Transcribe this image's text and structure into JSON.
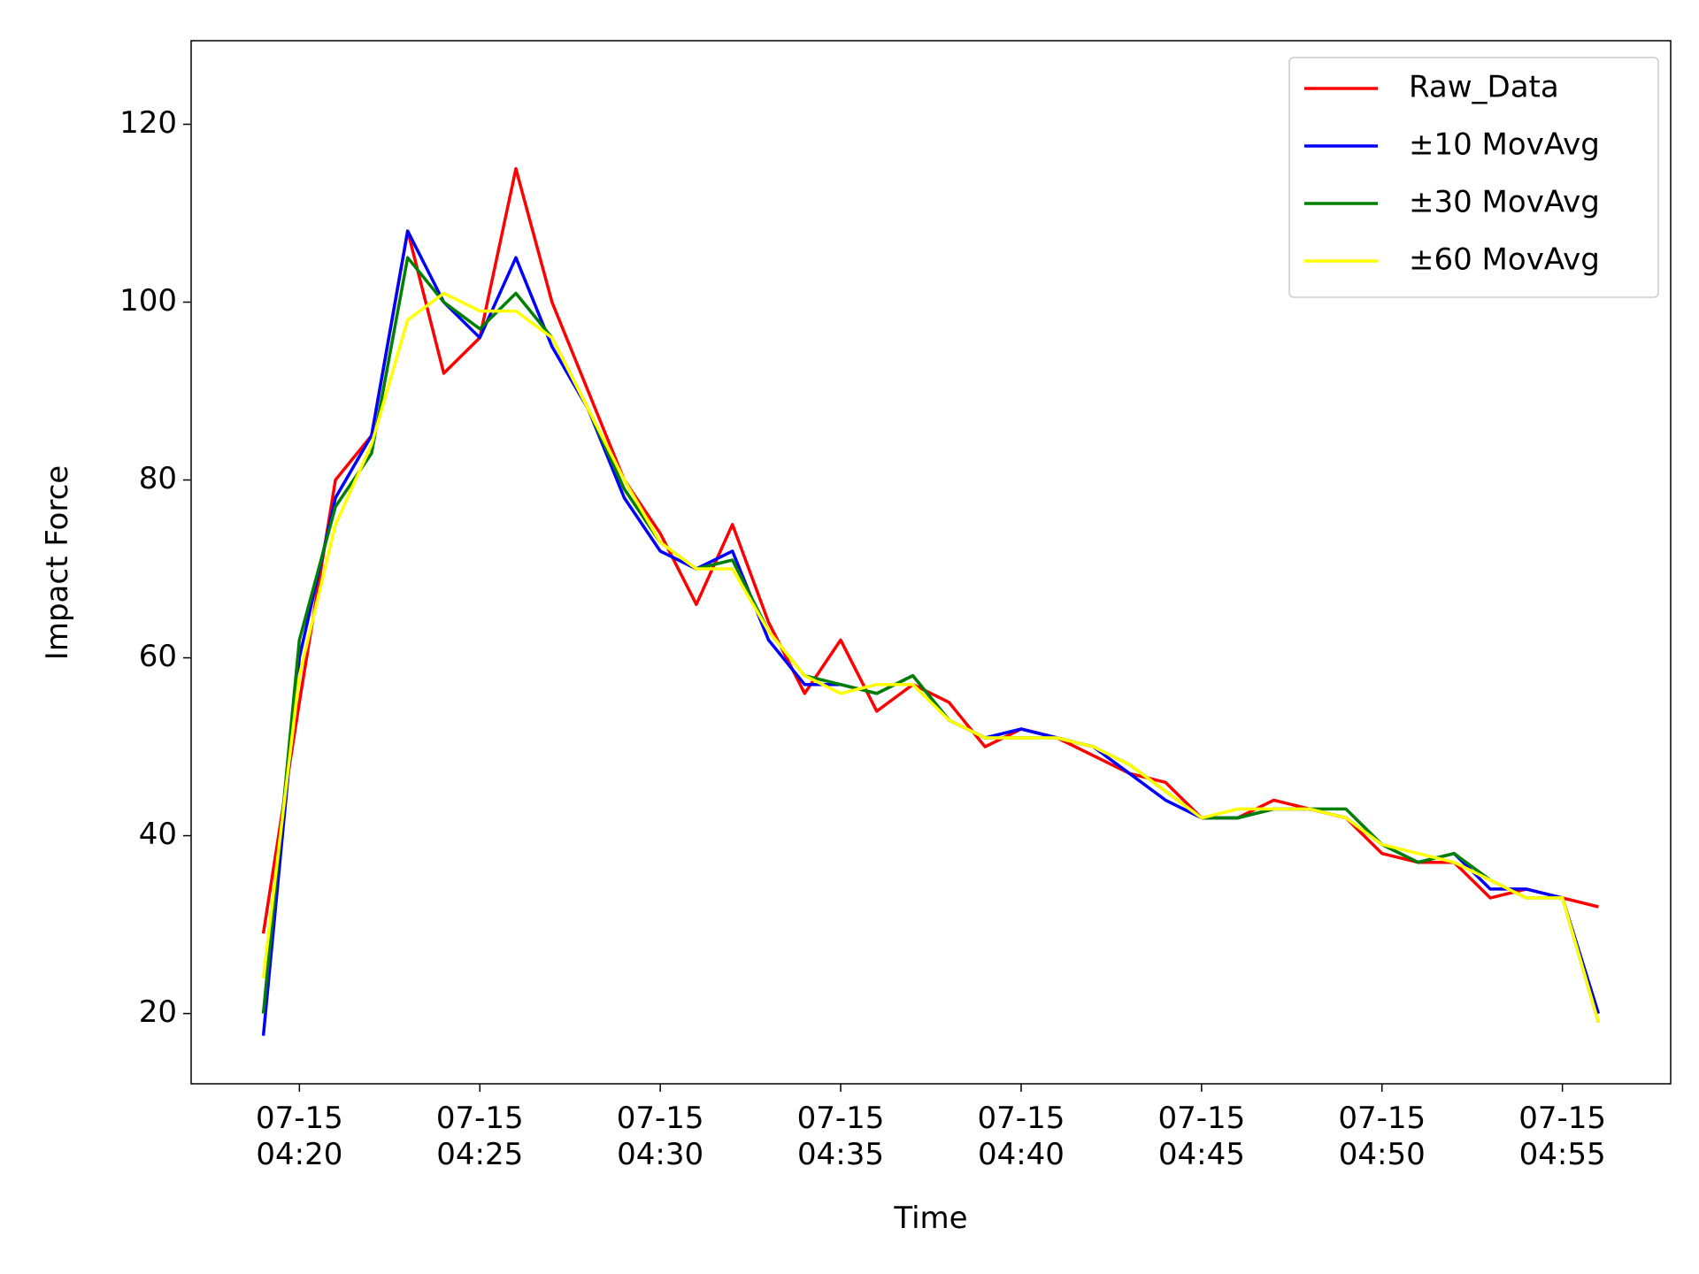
{
  "chart_data": {
    "type": "line",
    "xlabel": "Time",
    "ylabel": "Impact Force",
    "x": [
      "07-15 04:19",
      "07-15 04:20",
      "07-15 04:21",
      "07-15 04:22",
      "07-15 04:23",
      "07-15 04:24",
      "07-15 04:25",
      "07-15 04:26",
      "07-15 04:27",
      "07-15 04:28",
      "07-15 04:29",
      "07-15 04:30",
      "07-15 04:31",
      "07-15 04:32",
      "07-15 04:33",
      "07-15 04:34",
      "07-15 04:35",
      "07-15 04:36",
      "07-15 04:37",
      "07-15 04:38",
      "07-15 04:39",
      "07-15 04:40",
      "07-15 04:41",
      "07-15 04:42",
      "07-15 04:43",
      "07-15 04:44",
      "07-15 04:45",
      "07-15 04:46",
      "07-15 04:47",
      "07-15 04:48",
      "07-15 04:49",
      "07-15 04:50",
      "07-15 04:51",
      "07-15 04:52",
      "07-15 04:53",
      "07-15 04:54",
      "07-15 04:55",
      "07-15 04:56"
    ],
    "series": [
      {
        "name": "Raw_Data",
        "color": "#ff0000",
        "values": [
          29,
          55,
          80,
          85,
          108,
          92,
          96,
          115,
          100,
          90,
          80,
          74,
          66,
          75,
          64,
          56,
          62,
          54,
          57,
          55,
          50,
          52,
          51,
          49,
          47,
          46,
          42,
          42,
          44,
          43,
          42,
          38,
          37,
          37,
          33,
          34,
          33,
          32
        ]
      },
      {
        "name": "±10 MovAvg",
        "color": "#0000ff",
        "values": [
          17.5,
          60,
          78,
          85,
          108,
          100,
          96,
          105,
          95,
          88,
          78,
          72,
          70,
          72,
          62,
          57,
          57,
          56,
          58,
          53,
          51,
          52,
          51,
          50,
          47,
          44,
          42,
          42,
          43,
          43,
          42,
          39,
          37,
          38,
          34,
          34,
          33,
          20
        ]
      },
      {
        "name": "±30 MovAvg",
        "color": "#008000",
        "values": [
          20,
          62,
          77,
          83,
          105,
          100,
          97,
          101,
          96,
          88,
          79,
          73,
          70,
          71,
          63,
          58,
          57,
          56,
          58,
          53,
          51,
          51,
          51,
          50,
          48,
          45,
          42,
          42,
          43,
          43,
          43,
          39,
          37,
          38,
          35,
          33,
          33,
          19
        ]
      },
      {
        "name": "±60 MovAvg",
        "color": "#ffff00",
        "values": [
          24,
          58,
          75,
          84,
          98,
          101,
          99,
          99,
          96,
          88,
          80,
          73,
          70,
          70,
          63,
          58,
          56,
          57,
          57,
          53,
          51,
          51,
          51,
          50,
          48,
          45,
          42,
          43,
          43,
          43,
          42,
          39,
          38,
          37,
          35,
          33,
          33,
          19
        ]
      }
    ],
    "xlim": [
      "07-15 04:17",
      "07-15 04:58"
    ],
    "xticks": [
      "07-15 04:20",
      "07-15 04:25",
      "07-15 04:30",
      "07-15 04:35",
      "07-15 04:40",
      "07-15 04:45",
      "07-15 04:50",
      "07-15 04:55"
    ],
    "ylim": [
      12.1,
      129.4
    ],
    "yticks": [
      20,
      40,
      60,
      80,
      100,
      120
    ],
    "legend": "upper right",
    "grid": false
  }
}
